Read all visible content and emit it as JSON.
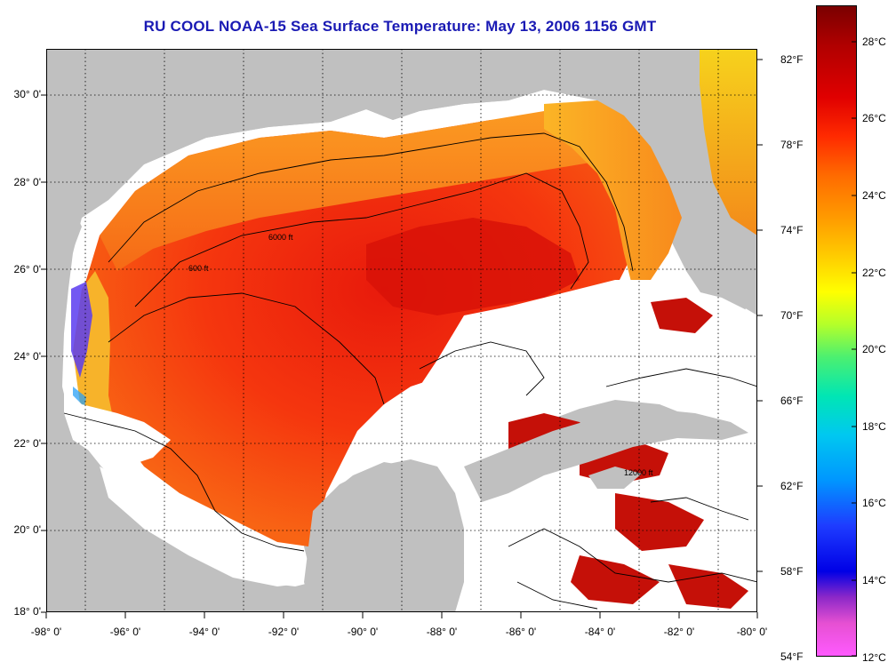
{
  "title": "RU COOL  NOAA-15  Sea Surface Temperature:  May 13, 2006 1156 GMT",
  "map": {
    "lat_labels": [
      "30° 0'",
      "28° 0'",
      "26° 0'",
      "24° 0'",
      "22° 0'",
      "20° 0'",
      "18° 0'"
    ],
    "lon_labels": [
      "-98° 0'",
      "-96° 0'",
      "-94° 0'",
      "-92° 0'",
      "-90° 0'",
      "-88° 0'",
      "-86° 0'",
      "-84° 0'",
      "-82° 0'",
      "-80° 0'"
    ],
    "lat_range": [
      18,
      31
    ],
    "lon_range": [
      -98,
      -80
    ],
    "land_color": "#c0c0c0",
    "cloud_color": "#ffffff",
    "contour_labels": [
      "600 ft",
      "6000 ft",
      "12000 ft"
    ],
    "gridlines": "dotted"
  },
  "colorbar": {
    "fahrenheit_labels": [
      "82°F",
      "78°F",
      "74°F",
      "70°F",
      "66°F",
      "62°F",
      "58°F",
      "54°F"
    ],
    "celsius_labels": [
      "28°C",
      "26°C",
      "24°C",
      "22°C",
      "20°C",
      "18°C",
      "16°C",
      "14°C",
      "12°C"
    ],
    "range_c": [
      12,
      29.2
    ]
  }
}
